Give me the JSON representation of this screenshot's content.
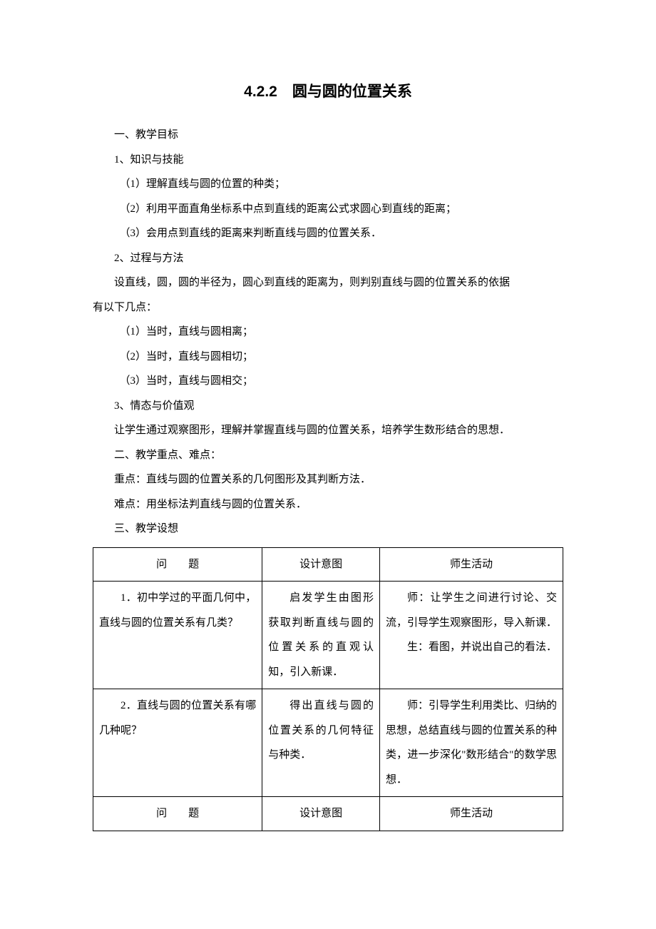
{
  "title": "4.2.2　圆与圆的位置关系",
  "sections": {
    "s1": "一、教学目标",
    "s1_1": "1、知识与技能",
    "s1_1_1": "（1）理解直线与圆的位置的种类；",
    "s1_1_2": "（2）利用平面直角坐标系中点到直线的距离公式求圆心到直线的距离；",
    "s1_1_3": "（3）会用点到直线的距离来判断直线与圆的位置关系．",
    "s1_2": "2、过程与方法",
    "s1_2_intro_a": "设直线，圆，圆的半径为，圆心到直线的距离为，则判别直线与圆的位置关系的依据",
    "s1_2_intro_b": "有以下几点：",
    "s1_2_1": "（1）当时，直线与圆相离；",
    "s1_2_2": "（2）当时，直线与圆相切；",
    "s1_2_3": "（3）当时，直线与圆相交；",
    "s1_3": "3、情态与价值观",
    "s1_3_text": "让学生通过观察图形，理解并掌握直线与圆的位置关系，培养学生数形结合的思想．",
    "s2": "二、教学重点、难点：",
    "s2_key": "重点：直线与圆的位置关系的几何图形及其判断方法．",
    "s2_diff": "难点：用坐标法判直线与圆的位置关系．",
    "s3": "三、教学设想"
  },
  "table": {
    "headers": {
      "h1": "问　　题",
      "h2": "设计意图",
      "h3": "师生活动"
    },
    "rows": [
      {
        "c1": "1．初中学过的平面几何中，直线与圆的位置关系有几类？",
        "c2": "启发学生由图形获取判断直线与圆的位置关系的直观认知，引入新课．",
        "c3_teacher": "师：让学生之间进行讨论、交流，引导学生观察图形，导入新课．",
        "c3_student": "生：看图，并说出自己的看法．"
      },
      {
        "c1": "2．直线与圆的位置关系有哪几种呢？",
        "c2": "得出直线与圆的位置关系的几何特征与种类．",
        "c3": "师：引导学生利用类比、归纳的思想，总结直线与圆的位置关系的种类，进一步深化\"数形结合\"的数学思想．"
      }
    ],
    "footer": {
      "h1": "问　　题",
      "h2": "设计意图",
      "h3": "师生活动"
    }
  },
  "colors": {
    "text": "#000000",
    "background": "#ffffff",
    "border": "#000000"
  },
  "typography": {
    "title_fontsize": 21,
    "body_fontsize": 15,
    "line_height": 2.3,
    "body_font": "SimSun",
    "title_font": "SimHei"
  }
}
